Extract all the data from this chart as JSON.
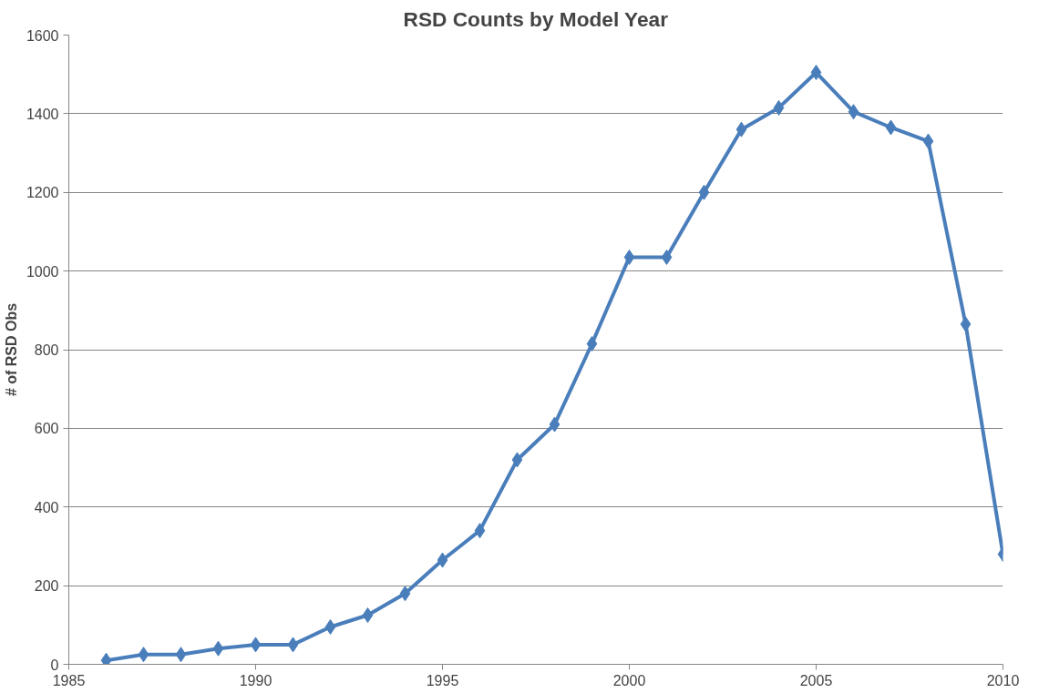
{
  "chart_data": {
    "type": "line",
    "title": "RSD Counts by Model Year",
    "ylabel": "# of RSD Obs",
    "x": [
      1986,
      1987,
      1988,
      1989,
      1990,
      1991,
      1992,
      1993,
      1994,
      1995,
      1996,
      1997,
      1998,
      1999,
      2000,
      2001,
      2002,
      2003,
      2004,
      2005,
      2006,
      2007,
      2008,
      2009,
      2010
    ],
    "series": [
      {
        "color": "#4a7ebb",
        "values": [
          10,
          25,
          25,
          40,
          50,
          50,
          95,
          125,
          180,
          265,
          340,
          520,
          610,
          815,
          1035,
          1035,
          1200,
          1360,
          1415,
          1505,
          1405,
          1365,
          1330,
          865,
          280
        ]
      }
    ],
    "xlim": [
      1985,
      2010
    ],
    "xticks": [
      1985,
      1990,
      1995,
      2000,
      2005,
      2010
    ],
    "ylim": [
      0,
      1600
    ],
    "yticks": [
      0,
      200,
      400,
      600,
      800,
      1000,
      1200,
      1400,
      1600
    ],
    "grid": "y",
    "marker": "diamond",
    "line_style": "solid"
  }
}
